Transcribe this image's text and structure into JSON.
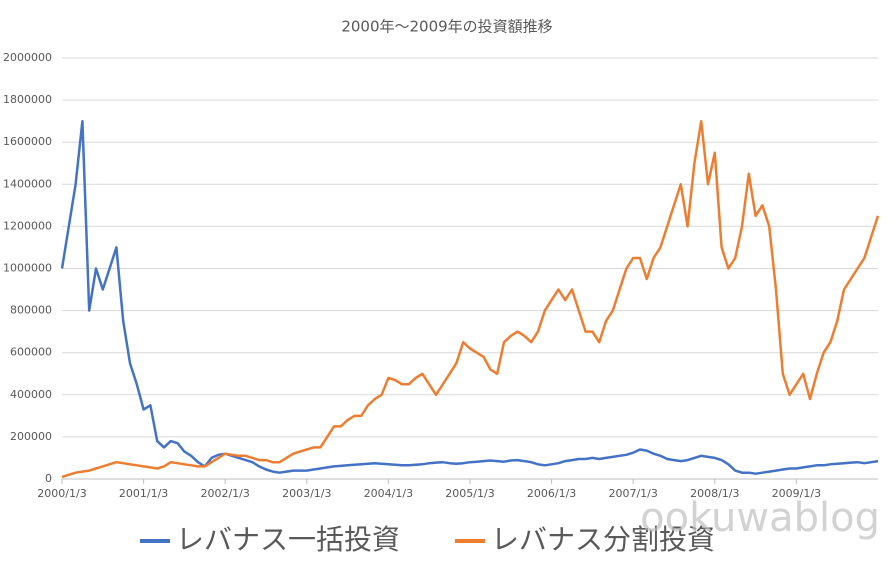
{
  "chart_data": {
    "type": "line",
    "title": "2000年～2009年の投資額推移",
    "watermark": "ookuwablog",
    "x": [
      0,
      1,
      2,
      3,
      4,
      5,
      6,
      7,
      8,
      9,
      10,
      11,
      12,
      13,
      14,
      15,
      16,
      17,
      18,
      19,
      20,
      21,
      22,
      23,
      24,
      25,
      26,
      27,
      28,
      29,
      30,
      31,
      32,
      33,
      34,
      35,
      36,
      37,
      38,
      39,
      40,
      41,
      42,
      43,
      44,
      45,
      46,
      47,
      48,
      49,
      50,
      51,
      52,
      53,
      54,
      55,
      56,
      57,
      58,
      59,
      60,
      61,
      62,
      63,
      64,
      65,
      66,
      67,
      68,
      69,
      70,
      71,
      72,
      73,
      74,
      75,
      76,
      77,
      78,
      79,
      80,
      81,
      82,
      83,
      84,
      85,
      86,
      87,
      88,
      89,
      90,
      91,
      92,
      93,
      94,
      95,
      96,
      97,
      98,
      99,
      100,
      101,
      102,
      103,
      104,
      105,
      106,
      107,
      108,
      109,
      110,
      111,
      112,
      113,
      114,
      115,
      116,
      117,
      118,
      119,
      120
    ],
    "xlim": [
      0,
      120
    ],
    "xticks": [
      {
        "value": 0,
        "label": "2000/1/3"
      },
      {
        "value": 12,
        "label": "2001/1/3"
      },
      {
        "value": 24,
        "label": "2002/1/3"
      },
      {
        "value": 36,
        "label": "2003/1/3"
      },
      {
        "value": 48,
        "label": "2004/1/3"
      },
      {
        "value": 60,
        "label": "2005/1/3"
      },
      {
        "value": 72,
        "label": "2006/1/3"
      },
      {
        "value": 84,
        "label": "2007/1/3"
      },
      {
        "value": 96,
        "label": "2008/1/3"
      },
      {
        "value": 108,
        "label": "2009/1/3"
      }
    ],
    "ylim": [
      0,
      2000000
    ],
    "yticks": [
      0,
      200000,
      400000,
      600000,
      800000,
      1000000,
      1200000,
      1400000,
      1600000,
      1800000,
      2000000
    ],
    "grid": true,
    "legend": "bottom",
    "series": [
      {
        "name": "レバナス一括投資",
        "color": "#4472c4",
        "values": [
          1000000,
          1200000,
          1400000,
          1700000,
          800000,
          1000000,
          900000,
          1000000,
          1100000,
          750000,
          550000,
          450000,
          330000,
          350000,
          180000,
          150000,
          180000,
          170000,
          130000,
          110000,
          80000,
          60000,
          100000,
          115000,
          120000,
          110000,
          100000,
          90000,
          80000,
          60000,
          45000,
          35000,
          30000,
          35000,
          40000,
          40000,
          40000,
          45000,
          50000,
          55000,
          60000,
          62000,
          65000,
          68000,
          70000,
          72000,
          75000,
          72000,
          70000,
          68000,
          65000,
          65000,
          68000,
          70000,
          75000,
          78000,
          80000,
          75000,
          72000,
          75000,
          80000,
          82000,
          85000,
          88000,
          85000,
          82000,
          88000,
          90000,
          85000,
          80000,
          70000,
          65000,
          70000,
          75000,
          85000,
          90000,
          95000,
          95000,
          100000,
          95000,
          100000,
          105000,
          110000,
          115000,
          125000,
          140000,
          135000,
          120000,
          110000,
          95000,
          90000,
          85000,
          90000,
          100000,
          110000,
          105000,
          100000,
          90000,
          70000,
          40000,
          30000,
          30000,
          25000,
          30000,
          35000,
          40000,
          45000,
          50000,
          50000,
          55000,
          60000,
          65000,
          65000,
          70000,
          72000,
          75000,
          78000,
          80000,
          75000,
          80000,
          85000
        ]
      },
      {
        "name": "レバナス分割投資",
        "color": "#ed7d31",
        "values": [
          10000,
          20000,
          30000,
          35000,
          40000,
          50000,
          60000,
          70000,
          80000,
          75000,
          70000,
          65000,
          60000,
          55000,
          50000,
          60000,
          80000,
          75000,
          70000,
          65000,
          60000,
          60000,
          80000,
          100000,
          120000,
          115000,
          110000,
          110000,
          100000,
          90000,
          90000,
          80000,
          80000,
          100000,
          120000,
          130000,
          140000,
          150000,
          150000,
          200000,
          250000,
          250000,
          280000,
          300000,
          300000,
          350000,
          380000,
          400000,
          480000,
          470000,
          450000,
          450000,
          480000,
          500000,
          450000,
          400000,
          450000,
          500000,
          550000,
          650000,
          620000,
          600000,
          580000,
          520000,
          500000,
          650000,
          680000,
          700000,
          680000,
          650000,
          700000,
          800000,
          850000,
          900000,
          850000,
          900000,
          800000,
          700000,
          700000,
          650000,
          750000,
          800000,
          900000,
          1000000,
          1050000,
          1050000,
          950000,
          1050000,
          1100000,
          1200000,
          1300000,
          1400000,
          1200000,
          1500000,
          1700000,
          1400000,
          1550000,
          1100000,
          1000000,
          1050000,
          1200000,
          1450000,
          1250000,
          1300000,
          1200000,
          900000,
          500000,
          400000,
          450000,
          500000,
          380000,
          500000,
          600000,
          650000,
          750000,
          900000,
          950000,
          1000000,
          1050000,
          1150000,
          1250000
        ]
      }
    ]
  }
}
